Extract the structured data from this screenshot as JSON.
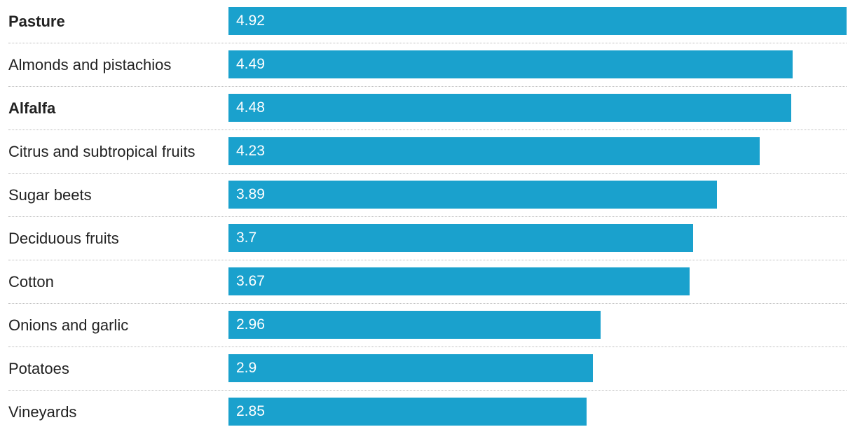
{
  "chart_data": {
    "type": "bar",
    "orientation": "horizontal",
    "categories": [
      "Pasture",
      "Almonds and pistachios",
      "Alfalfa",
      "Citrus and subtropical fruits",
      "Sugar beets",
      "Deciduous fruits",
      "Cotton",
      "Onions and garlic",
      "Potatoes",
      "Vineyards"
    ],
    "values": [
      4.92,
      4.49,
      4.48,
      4.23,
      3.89,
      3.7,
      3.67,
      2.96,
      2.9,
      2.85
    ],
    "value_labels": [
      "4.92",
      "4.49",
      "4.48",
      "4.23",
      "3.89",
      "3.7",
      "3.67",
      "2.96",
      "2.9",
      "2.85"
    ],
    "emphasized_categories": [
      "Pasture",
      "Alfalfa"
    ],
    "xlim": [
      0,
      4.92
    ],
    "grid": false,
    "bar_color": "#1aa1cd",
    "divider_style": "dotted"
  }
}
